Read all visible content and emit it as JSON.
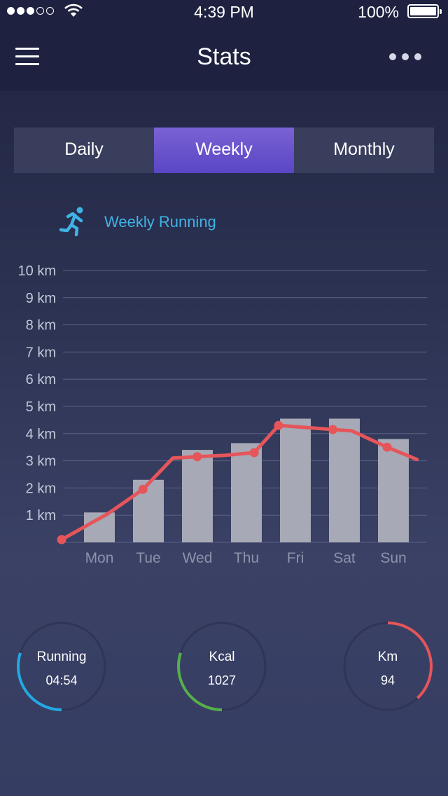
{
  "status_bar": {
    "time": "4:39 PM",
    "battery": "100%"
  },
  "nav": {
    "title": "Stats"
  },
  "tabs": [
    {
      "label": "Daily",
      "active": false
    },
    {
      "label": "Weekly",
      "active": true
    },
    {
      "label": "Monthly",
      "active": false
    }
  ],
  "legend": {
    "label": "Weekly Running",
    "icon": "running-person-icon",
    "color": "#3fb3e6"
  },
  "chart_data": {
    "type": "bar",
    "categories": [
      "Mon",
      "Tue",
      "Wed",
      "Thu",
      "Fri",
      "Sat",
      "Sun"
    ],
    "values": [
      1.1,
      2.3,
      3.4,
      3.65,
      4.55,
      4.55,
      3.8
    ],
    "ylim": [
      0,
      10
    ],
    "y_ticks": [
      "1 km",
      "2 km",
      "3 km",
      "4 km",
      "5 km",
      "6 km",
      "7 km",
      "8 km",
      "9 km",
      "10 km"
    ],
    "grid": true,
    "bar_color": "#a7a9b6",
    "line": {
      "type": "line",
      "color": "#e5555a",
      "points": [
        {
          "x": 0.0,
          "y": 0.1
        },
        {
          "x": 0.85,
          "y": 1.05
        },
        {
          "x": 1.5,
          "y": 1.95
        },
        {
          "x": 2.05,
          "y": 3.1
        },
        {
          "x": 2.5,
          "y": 3.15
        },
        {
          "x": 3.0,
          "y": 3.2
        },
        {
          "x": 3.55,
          "y": 3.3
        },
        {
          "x": 4.0,
          "y": 4.3
        },
        {
          "x": 5.0,
          "y": 4.15
        },
        {
          "x": 5.35,
          "y": 4.1
        },
        {
          "x": 6.0,
          "y": 3.5
        },
        {
          "x": 6.55,
          "y": 3.05
        }
      ],
      "markers": [
        {
          "x": 0.0,
          "y": 0.1
        },
        {
          "x": 1.5,
          "y": 1.95
        },
        {
          "x": 2.5,
          "y": 3.15
        },
        {
          "x": 3.55,
          "y": 3.3
        },
        {
          "x": 4.0,
          "y": 4.3
        },
        {
          "x": 5.0,
          "y": 4.15
        },
        {
          "x": 6.0,
          "y": 3.5
        }
      ]
    }
  },
  "summary": [
    {
      "label": "Running",
      "value": "04:54",
      "color": "#22a9e4",
      "progress": 0.3
    },
    {
      "label": "Kcal",
      "value": "1027",
      "color": "#55b04a",
      "progress": 0.3
    },
    {
      "label": "Km",
      "value": "94",
      "color": "#e5555a",
      "progress": 0.38
    }
  ]
}
